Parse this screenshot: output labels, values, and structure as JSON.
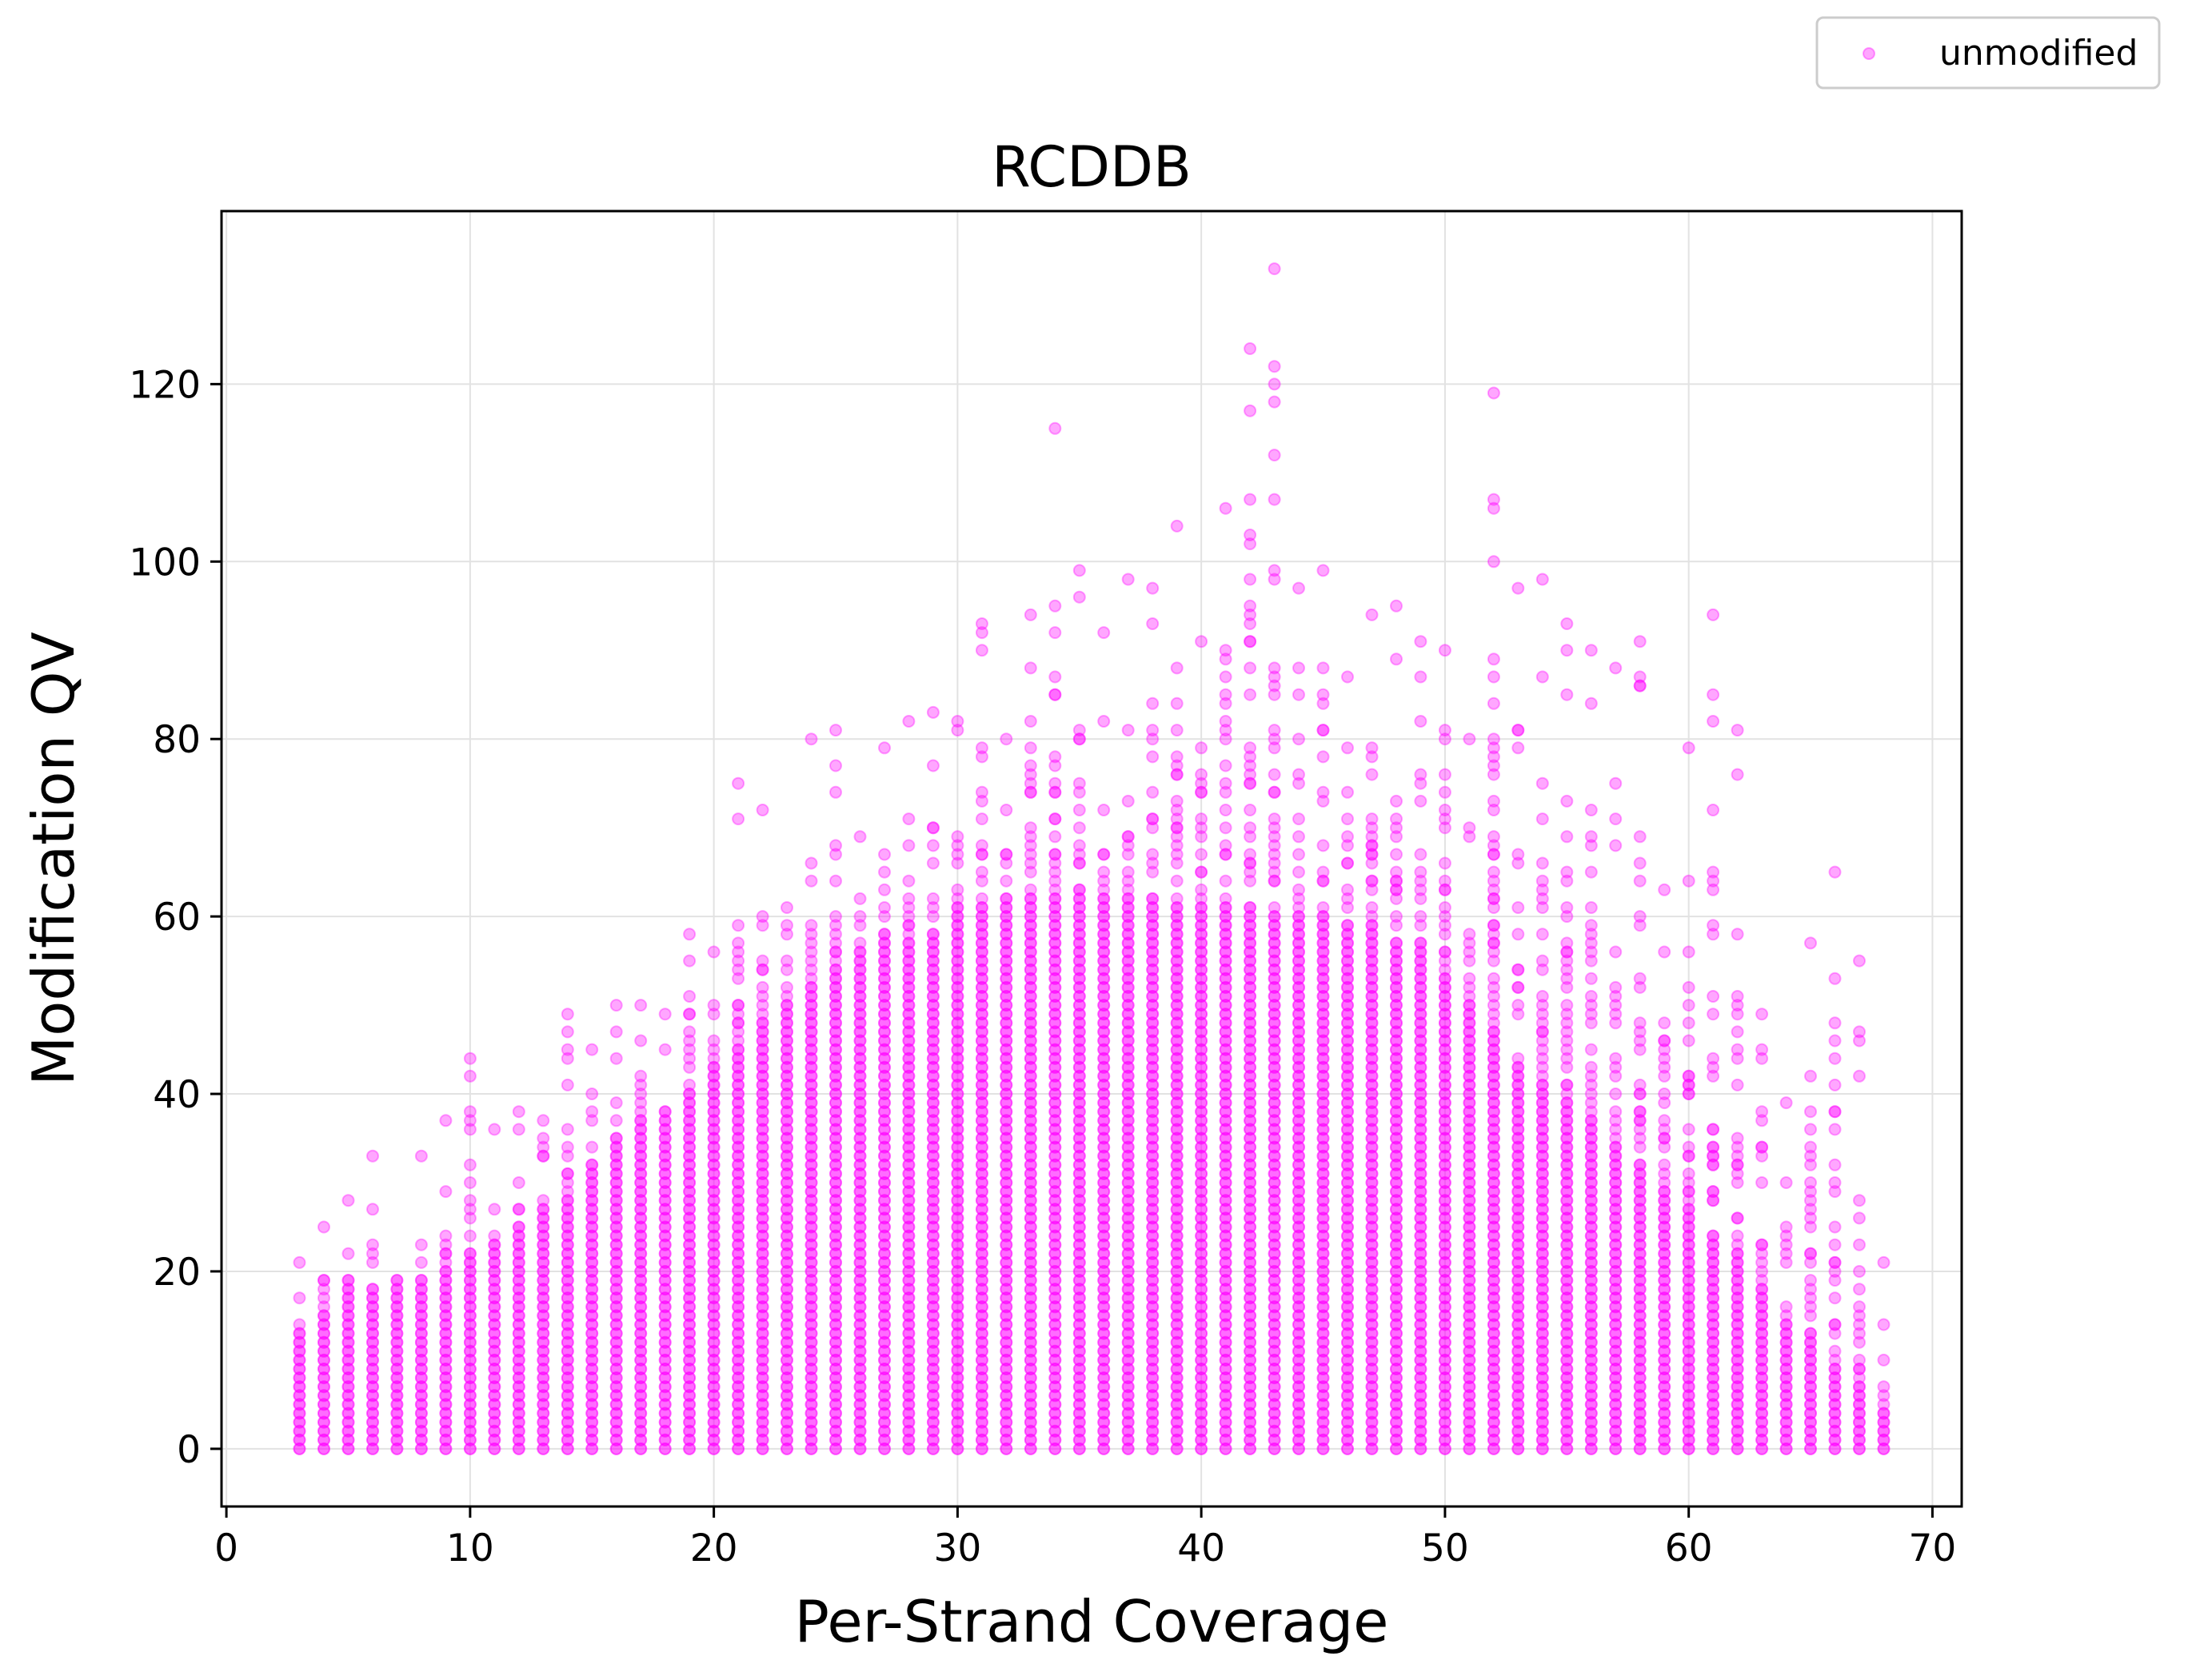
{
  "chart_data": {
    "type": "scatter",
    "title": "RCDDB",
    "xlabel": "Per-Strand Coverage",
    "ylabel": "Modification QV",
    "xlim": [
      -0.2,
      71.2
    ],
    "ylim": [
      -6.5,
      139.5
    ],
    "x_ticks": [
      0,
      10,
      20,
      30,
      40,
      50,
      60,
      70
    ],
    "y_ticks": [
      0,
      20,
      40,
      60,
      80,
      100,
      120
    ],
    "grid": true,
    "legend": {
      "placement": "top-right-outside",
      "entries": [
        "unmodified"
      ]
    },
    "series": [
      {
        "name": "unmodified",
        "color": "#ff00ff",
        "alpha": 0.35,
        "x_range": [
          3,
          68
        ],
        "dense_column_top": [
          [
            3,
            13
          ],
          [
            4,
            15
          ],
          [
            5,
            17
          ],
          [
            6,
            18
          ],
          [
            7,
            19
          ],
          [
            8,
            19
          ],
          [
            9,
            20
          ],
          [
            10,
            22
          ],
          [
            11,
            23
          ],
          [
            12,
            25
          ],
          [
            13,
            27
          ],
          [
            14,
            28
          ],
          [
            15,
            32
          ],
          [
            16,
            35
          ],
          [
            17,
            37
          ],
          [
            18,
            38
          ],
          [
            19,
            40
          ],
          [
            20,
            43
          ],
          [
            21,
            45
          ],
          [
            22,
            48
          ],
          [
            23,
            50
          ],
          [
            24,
            52
          ],
          [
            25,
            54
          ],
          [
            26,
            55
          ],
          [
            27,
            57
          ],
          [
            28,
            57
          ],
          [
            29,
            58
          ],
          [
            30,
            60
          ],
          [
            31,
            61
          ],
          [
            32,
            62
          ],
          [
            33,
            62
          ],
          [
            34,
            62
          ],
          [
            35,
            62
          ],
          [
            36,
            62
          ],
          [
            37,
            62
          ],
          [
            38,
            62
          ],
          [
            39,
            61
          ],
          [
            40,
            61
          ],
          [
            41,
            61
          ],
          [
            42,
            61
          ],
          [
            43,
            60
          ],
          [
            44,
            60
          ],
          [
            45,
            60
          ],
          [
            46,
            59
          ],
          [
            47,
            58
          ],
          [
            48,
            57
          ],
          [
            49,
            56
          ],
          [
            50,
            53
          ],
          [
            51,
            50
          ],
          [
            52,
            47
          ],
          [
            53,
            43
          ],
          [
            54,
            41
          ],
          [
            55,
            39
          ],
          [
            56,
            37
          ],
          [
            57,
            34
          ],
          [
            58,
            32
          ],
          [
            59,
            29
          ],
          [
            60,
            27
          ],
          [
            61,
            24
          ],
          [
            62,
            22
          ],
          [
            63,
            18
          ],
          [
            64,
            14
          ],
          [
            65,
            12
          ],
          [
            66,
            9
          ],
          [
            67,
            7
          ],
          [
            68,
            4
          ]
        ],
        "column_extent_top": [
          [
            3,
            21
          ],
          [
            4,
            25
          ],
          [
            5,
            28
          ],
          [
            6,
            33
          ],
          [
            7,
            19
          ],
          [
            8,
            33
          ],
          [
            9,
            37
          ],
          [
            10,
            44
          ],
          [
            11,
            36
          ],
          [
            12,
            38
          ],
          [
            13,
            37
          ],
          [
            14,
            49
          ],
          [
            15,
            45
          ],
          [
            16,
            50
          ],
          [
            17,
            50
          ],
          [
            18,
            49
          ],
          [
            19,
            58
          ],
          [
            20,
            56
          ],
          [
            21,
            75
          ],
          [
            22,
            72
          ],
          [
            23,
            61
          ],
          [
            24,
            80
          ],
          [
            25,
            81
          ],
          [
            26,
            69
          ],
          [
            27,
            79
          ],
          [
            28,
            82
          ],
          [
            29,
            83
          ],
          [
            30,
            82
          ],
          [
            31,
            93
          ],
          [
            32,
            80
          ],
          [
            33,
            94
          ],
          [
            34,
            115
          ],
          [
            35,
            99
          ],
          [
            36,
            92
          ],
          [
            37,
            98
          ],
          [
            38,
            97
          ],
          [
            39,
            104
          ],
          [
            40,
            91
          ],
          [
            41,
            106
          ],
          [
            42,
            124
          ],
          [
            43,
            133
          ],
          [
            44,
            97
          ],
          [
            45,
            99
          ],
          [
            46,
            87
          ],
          [
            47,
            94
          ],
          [
            48,
            95
          ],
          [
            49,
            91
          ],
          [
            50,
            90
          ],
          [
            51,
            80
          ],
          [
            52,
            119
          ],
          [
            53,
            97
          ],
          [
            54,
            98
          ],
          [
            55,
            93
          ],
          [
            56,
            90
          ],
          [
            57,
            88
          ],
          [
            58,
            91
          ],
          [
            59,
            63
          ],
          [
            60,
            79
          ],
          [
            61,
            94
          ],
          [
            62,
            81
          ],
          [
            63,
            49
          ],
          [
            64,
            39
          ],
          [
            65,
            57
          ],
          [
            66,
            65
          ],
          [
            67,
            55
          ],
          [
            68,
            21
          ]
        ]
      }
    ]
  }
}
